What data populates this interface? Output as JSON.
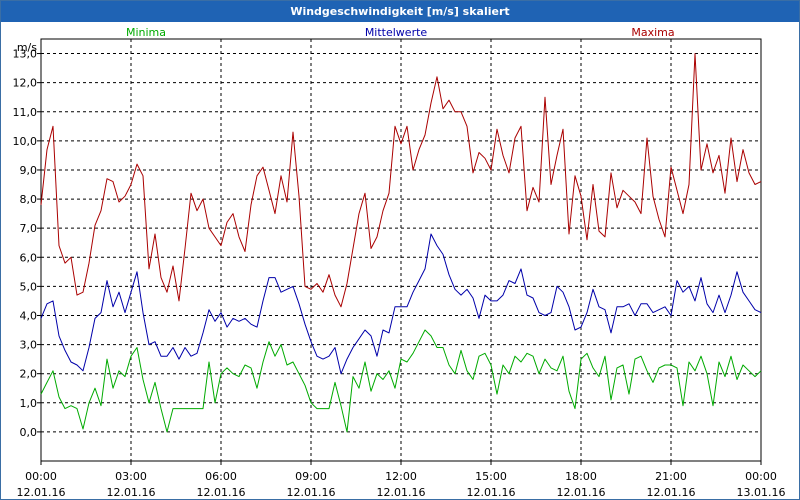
{
  "window": {
    "title": "Windgeschwindigkeit [m/s] skaliert"
  },
  "chart_data": {
    "type": "line",
    "title": "Windgeschwindigkeit [m/s] skaliert",
    "ylabel": "m/s",
    "ylim": [
      -1.0,
      13.5
    ],
    "y_ticks": [
      "0,0",
      "1,0",
      "2,0",
      "3,0",
      "4,0",
      "5,0",
      "6,0",
      "7,0",
      "8,0",
      "9,0",
      "10,0",
      "11,0",
      "12,0",
      "13,0"
    ],
    "x_range_hours": [
      0,
      24
    ],
    "x_ticks": [
      {
        "time": "00:00",
        "date": "12.01.16"
      },
      {
        "time": "03:00",
        "date": "12.01.16"
      },
      {
        "time": "06:00",
        "date": "12.01.16"
      },
      {
        "time": "09:00",
        "date": "12.01.16"
      },
      {
        "time": "12:00",
        "date": "12.01.16"
      },
      {
        "time": "15:00",
        "date": "12.01.16"
      },
      {
        "time": "18:00",
        "date": "12.01.16"
      },
      {
        "time": "21:00",
        "date": "12.01.16"
      },
      {
        "time": "00:00",
        "date": "13.01.16"
      }
    ],
    "legend": [
      "Minima",
      "Mittelwerte",
      "Maxima"
    ],
    "series": [
      {
        "name": "Minima",
        "color": "#00aa00",
        "x_hours": [
          0,
          0.2,
          0.4,
          0.6,
          0.8,
          1.0,
          1.2,
          1.4,
          1.6,
          1.8,
          2.0,
          2.2,
          2.4,
          2.6,
          2.8,
          3.0,
          3.2,
          3.4,
          3.6,
          3.8,
          4.0,
          4.2,
          4.4,
          4.6,
          4.8,
          5.0,
          5.2,
          5.4,
          5.6,
          5.8,
          6.0,
          6.2,
          6.4,
          6.6,
          6.8,
          7.0,
          7.2,
          7.4,
          7.6,
          7.8,
          8.0,
          8.2,
          8.4,
          8.6,
          8.8,
          9.0,
          9.2,
          9.4,
          9.6,
          9.8,
          10.0,
          10.2,
          10.4,
          10.6,
          10.8,
          11.0,
          11.2,
          11.4,
          11.6,
          11.8,
          12.0,
          12.2,
          12.4,
          12.6,
          12.8,
          13.0,
          13.2,
          13.4,
          13.6,
          13.8,
          14.0,
          14.2,
          14.4,
          14.6,
          14.8,
          15.0,
          15.2,
          15.4,
          15.6,
          15.8,
          16.0,
          16.2,
          16.4,
          16.6,
          16.8,
          17.0,
          17.2,
          17.4,
          17.6,
          17.8,
          18.0,
          18.2,
          18.4,
          18.6,
          18.8,
          19.0,
          19.2,
          19.4,
          19.6,
          19.8,
          20.0,
          20.2,
          20.4,
          20.6,
          20.8,
          21.0,
          21.2,
          21.4,
          21.6,
          21.8,
          22.0,
          22.2,
          22.4,
          22.6,
          22.8,
          23.0,
          23.2,
          23.4,
          23.6,
          23.8,
          24.0
        ],
        "values": [
          1.3,
          1.7,
          2.1,
          1.2,
          0.8,
          0.9,
          0.8,
          0.1,
          1.0,
          1.5,
          0.9,
          2.5,
          1.5,
          2.1,
          1.9,
          2.6,
          2.9,
          1.8,
          1.0,
          1.7,
          0.8,
          0.0,
          0.8,
          0.8,
          0.8,
          0.8,
          0.8,
          0.8,
          2.4,
          1.0,
          2.0,
          2.2,
          2.0,
          1.9,
          2.3,
          2.2,
          1.5,
          2.4,
          3.1,
          2.6,
          3.0,
          2.3,
          2.4,
          2.0,
          1.6,
          1.0,
          0.8,
          0.8,
          0.8,
          1.7,
          0.9,
          0.0,
          1.9,
          1.5,
          2.4,
          1.4,
          2.0,
          1.8,
          2.1,
          1.5,
          2.5,
          2.4,
          2.7,
          3.1,
          3.5,
          3.3,
          2.9,
          2.9,
          2.3,
          2.0,
          2.8,
          2.1,
          1.8,
          2.6,
          2.7,
          2.3,
          1.3,
          2.3,
          2.0,
          2.6,
          2.4,
          2.7,
          2.6,
          2.0,
          2.5,
          2.2,
          2.1,
          2.6,
          1.4,
          0.8,
          2.5,
          2.7,
          2.2,
          1.9,
          2.6,
          1.1,
          2.2,
          2.3,
          1.3,
          2.5,
          2.6,
          2.1,
          1.7,
          2.2,
          2.3,
          2.3,
          2.2,
          0.9,
          2.4,
          2.1,
          2.6,
          2.0,
          0.9,
          2.4,
          1.9,
          2.6,
          1.8,
          2.3,
          2.1,
          1.9,
          2.1
        ]
      },
      {
        "name": "Mittelwerte",
        "color": "#0000aa",
        "x_hours": [
          0,
          0.2,
          0.4,
          0.6,
          0.8,
          1.0,
          1.2,
          1.4,
          1.6,
          1.8,
          2.0,
          2.2,
          2.4,
          2.6,
          2.8,
          3.0,
          3.2,
          3.4,
          3.6,
          3.8,
          4.0,
          4.2,
          4.4,
          4.6,
          4.8,
          5.0,
          5.2,
          5.4,
          5.6,
          5.8,
          6.0,
          6.2,
          6.4,
          6.6,
          6.8,
          7.0,
          7.2,
          7.4,
          7.6,
          7.8,
          8.0,
          8.2,
          8.4,
          8.6,
          8.8,
          9.0,
          9.2,
          9.4,
          9.6,
          9.8,
          10.0,
          10.2,
          10.4,
          10.6,
          10.8,
          11.0,
          11.2,
          11.4,
          11.6,
          11.8,
          12.0,
          12.2,
          12.4,
          12.6,
          12.8,
          13.0,
          13.2,
          13.4,
          13.6,
          13.8,
          14.0,
          14.2,
          14.4,
          14.6,
          14.8,
          15.0,
          15.2,
          15.4,
          15.6,
          15.8,
          16.0,
          16.2,
          16.4,
          16.6,
          16.8,
          17.0,
          17.2,
          17.4,
          17.6,
          17.8,
          18.0,
          18.2,
          18.4,
          18.6,
          18.8,
          19.0,
          19.2,
          19.4,
          19.6,
          19.8,
          20.0,
          20.2,
          20.4,
          20.6,
          20.8,
          21.0,
          21.2,
          21.4,
          21.6,
          21.8,
          22.0,
          22.2,
          22.4,
          22.6,
          22.8,
          23.0,
          23.2,
          23.4,
          23.6,
          23.8,
          24.0
        ],
        "values": [
          3.9,
          4.4,
          4.5,
          3.3,
          2.8,
          2.4,
          2.3,
          2.1,
          2.9,
          3.9,
          4.1,
          5.2,
          4.3,
          4.8,
          4.1,
          4.8,
          5.5,
          4.1,
          3.0,
          3.1,
          2.6,
          2.6,
          2.9,
          2.5,
          2.9,
          2.6,
          2.7,
          3.4,
          4.2,
          3.8,
          4.1,
          3.6,
          3.9,
          3.8,
          3.9,
          3.7,
          3.6,
          4.5,
          5.3,
          5.3,
          4.8,
          4.9,
          5.0,
          4.4,
          3.7,
          3.1,
          2.6,
          2.5,
          2.6,
          2.9,
          2.0,
          2.5,
          2.9,
          3.2,
          3.5,
          3.3,
          2.6,
          3.5,
          3.4,
          4.3,
          4.3,
          4.3,
          4.8,
          5.2,
          5.6,
          6.8,
          6.4,
          6.1,
          5.4,
          4.9,
          4.7,
          4.9,
          4.6,
          3.9,
          4.7,
          4.5,
          4.5,
          4.7,
          5.2,
          5.1,
          5.6,
          4.7,
          4.6,
          4.1,
          4.0,
          4.1,
          5.0,
          4.8,
          4.3,
          3.5,
          3.6,
          4.1,
          4.9,
          4.3,
          4.2,
          3.4,
          4.3,
          4.3,
          4.4,
          4.0,
          4.4,
          4.4,
          4.1,
          4.2,
          4.3,
          4.0,
          5.2,
          4.8,
          5.0,
          4.5,
          5.3,
          4.4,
          4.1,
          4.7,
          4.1,
          4.7,
          5.5,
          4.8,
          4.5,
          4.2,
          4.1
        ]
      },
      {
        "name": "Maxima",
        "color": "#aa0000",
        "x_hours": [
          0,
          0.2,
          0.4,
          0.6,
          0.8,
          1.0,
          1.2,
          1.4,
          1.6,
          1.8,
          2.0,
          2.2,
          2.4,
          2.6,
          2.8,
          3.0,
          3.2,
          3.4,
          3.6,
          3.8,
          4.0,
          4.2,
          4.4,
          4.6,
          4.8,
          5.0,
          5.2,
          5.4,
          5.6,
          5.8,
          6.0,
          6.2,
          6.4,
          6.6,
          6.8,
          7.0,
          7.2,
          7.4,
          7.6,
          7.8,
          8.0,
          8.2,
          8.4,
          8.6,
          8.8,
          9.0,
          9.2,
          9.4,
          9.6,
          9.8,
          10.0,
          10.2,
          10.4,
          10.6,
          10.8,
          11.0,
          11.2,
          11.4,
          11.6,
          11.8,
          12.0,
          12.2,
          12.4,
          12.6,
          12.8,
          13.0,
          13.2,
          13.4,
          13.6,
          13.8,
          14.0,
          14.2,
          14.4,
          14.6,
          14.8,
          15.0,
          15.2,
          15.4,
          15.6,
          15.8,
          16.0,
          16.2,
          16.4,
          16.6,
          16.8,
          17.0,
          17.2,
          17.4,
          17.6,
          17.8,
          18.0,
          18.2,
          18.4,
          18.6,
          18.8,
          19.0,
          19.2,
          19.4,
          19.6,
          19.8,
          20.0,
          20.2,
          20.4,
          20.6,
          20.8,
          21.0,
          21.2,
          21.4,
          21.6,
          21.8,
          22.0,
          22.2,
          22.4,
          22.6,
          22.8,
          23.0,
          23.2,
          23.4,
          23.6,
          23.8,
          24.0
        ],
        "values": [
          7.8,
          9.7,
          10.5,
          6.4,
          5.8,
          6.0,
          4.7,
          4.8,
          5.8,
          7.1,
          7.6,
          8.7,
          8.6,
          7.9,
          8.1,
          8.5,
          9.2,
          8.8,
          5.6,
          6.8,
          5.3,
          4.8,
          5.7,
          4.5,
          6.3,
          8.2,
          7.6,
          8.0,
          7.0,
          6.7,
          6.4,
          7.2,
          7.5,
          6.7,
          6.2,
          7.8,
          8.8,
          9.1,
          8.3,
          7.5,
          8.8,
          7.9,
          10.3,
          8.1,
          5.0,
          4.9,
          5.1,
          4.8,
          5.4,
          4.7,
          4.3,
          5.1,
          6.3,
          7.5,
          8.2,
          6.3,
          6.7,
          7.6,
          8.2,
          10.5,
          9.9,
          10.5,
          9.0,
          9.7,
          10.2,
          11.3,
          12.2,
          11.1,
          11.4,
          11.0,
          11.0,
          10.5,
          8.9,
          9.6,
          9.4,
          9.0,
          10.4,
          9.5,
          8.9,
          10.1,
          10.5,
          7.6,
          8.4,
          7.9,
          11.5,
          8.5,
          9.5,
          10.4,
          6.8,
          8.8,
          8.1,
          6.6,
          8.5,
          6.9,
          6.7,
          8.9,
          7.7,
          8.3,
          8.1,
          7.9,
          7.5,
          10.1,
          8.1,
          7.3,
          6.7,
          9.1,
          8.3,
          7.5,
          8.5,
          13.0,
          9.0,
          9.9,
          8.9,
          9.5,
          8.2,
          10.1,
          8.6,
          9.7,
          8.9,
          8.5,
          8.6
        ]
      }
    ]
  }
}
